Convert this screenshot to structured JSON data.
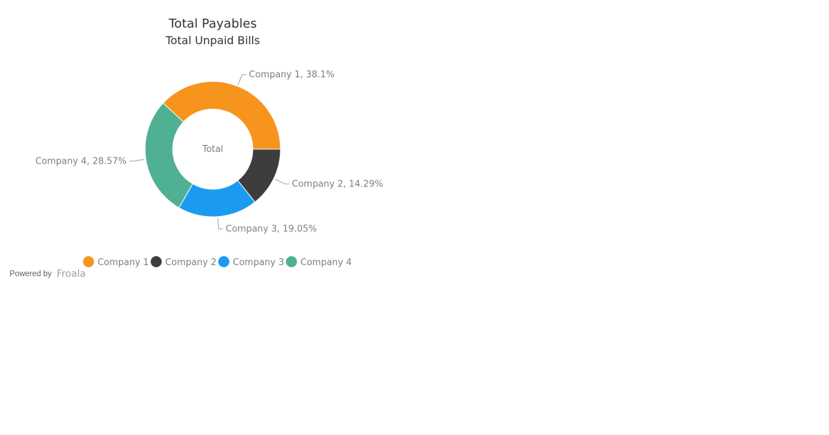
{
  "chart_data": {
    "type": "pie",
    "title": "Total Payables",
    "subtitle": "Total Unpaid Bills",
    "center_label": "Total",
    "categories": [
      "Company 1",
      "Company 2",
      "Company 3",
      "Company 4"
    ],
    "values": [
      38.1,
      14.29,
      19.05,
      28.57
    ],
    "labels": [
      "Company 1, 38.1%",
      "Company 2, 14.29%",
      "Company 3, 19.05%",
      "Company 4, 28.57%"
    ],
    "colors": [
      "#f7941e",
      "#3d3d3d",
      "#1b9bf0",
      "#50b094"
    ],
    "legend": {
      "position": "bottom",
      "entries": [
        "Company 1",
        "Company 2",
        "Company 3",
        "Company 4"
      ]
    }
  },
  "credit": {
    "powered_by": "Powered by",
    "brand": "Froala"
  }
}
